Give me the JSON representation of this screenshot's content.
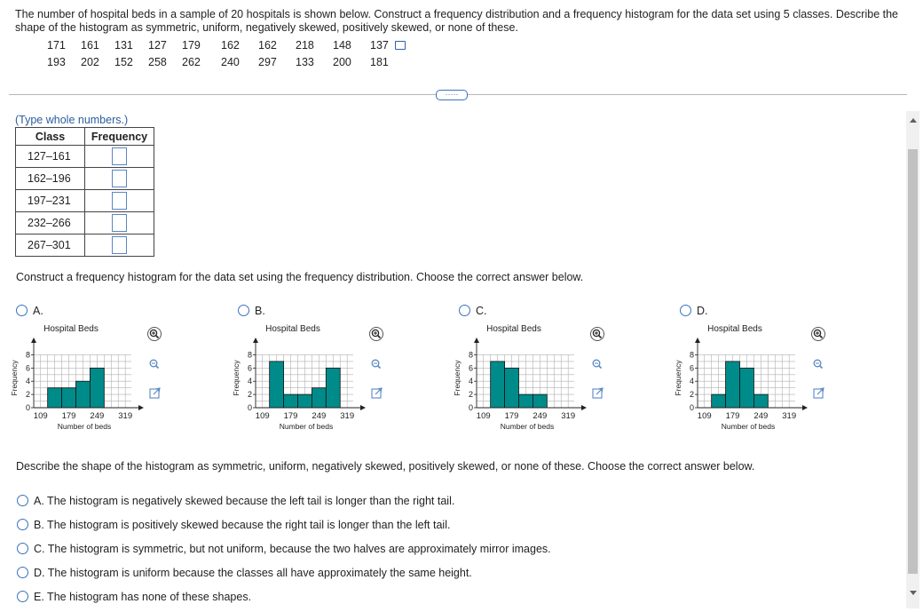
{
  "prompt": "The number of hospital beds in a sample of 20 hospitals is shown below. Construct a frequency distribution and a frequency histogram for the data set using 5 classes. Describe the shape of the histogram as symmetric, uniform, negatively skewed, positively skewed, or none of these.",
  "data_rows": [
    [
      "171",
      "161",
      "131",
      "127",
      "179",
      "162",
      "162",
      "218",
      "148",
      "137"
    ],
    [
      "193",
      "202",
      "152",
      "258",
      "262",
      "240",
      "297",
      "133",
      "200",
      "181"
    ]
  ],
  "more_label": "·····",
  "table_note": "(Type whole numbers.)",
  "table": {
    "headers": [
      "Class",
      "Frequency"
    ],
    "classes": [
      "127–161",
      "162–196",
      "197–231",
      "232–266",
      "267–301"
    ]
  },
  "question1": "Construct a frequency histogram for the data set using the frequency distribution. Choose the correct answer below.",
  "chart_data": [
    {
      "option": "A.",
      "type": "bar",
      "title": "Hospital Beds",
      "xlabel": "Number of beds",
      "ylabel": "Frequency",
      "yticks": [
        "0",
        "2",
        "4",
        "6",
        "8"
      ],
      "xticks": [
        "109",
        "179",
        "249",
        "319"
      ],
      "ylim": [
        0,
        9
      ],
      "xlim": [
        92,
        334
      ],
      "bins": [
        [
          127,
          161
        ],
        [
          162,
          196
        ],
        [
          197,
          231
        ],
        [
          232,
          266
        ],
        [
          267,
          301
        ]
      ],
      "values": [
        3,
        3,
        4,
        6,
        0
      ]
    },
    {
      "option": "B.",
      "type": "bar",
      "title": "Hospital Beds",
      "xlabel": "Number of beds",
      "ylabel": "Frequency",
      "yticks": [
        "0",
        "2",
        "4",
        "6",
        "8"
      ],
      "xticks": [
        "109",
        "179",
        "249",
        "319"
      ],
      "ylim": [
        0,
        9
      ],
      "xlim": [
        92,
        334
      ],
      "bins": [
        [
          127,
          161
        ],
        [
          162,
          196
        ],
        [
          197,
          231
        ],
        [
          232,
          266
        ],
        [
          267,
          301
        ]
      ],
      "values": [
        7,
        2,
        2,
        3,
        6
      ]
    },
    {
      "option": "C.",
      "type": "bar",
      "title": "Hospital Beds",
      "xlabel": "Number of beds",
      "ylabel": "Frequency",
      "yticks": [
        "0",
        "2",
        "4",
        "6",
        "8"
      ],
      "xticks": [
        "109",
        "179",
        "249",
        "319"
      ],
      "ylim": [
        0,
        9
      ],
      "xlim": [
        92,
        334
      ],
      "bins": [
        [
          127,
          161
        ],
        [
          162,
          196
        ],
        [
          197,
          231
        ],
        [
          232,
          266
        ],
        [
          267,
          301
        ]
      ],
      "values": [
        7,
        6,
        2,
        2,
        0
      ]
    },
    {
      "option": "D.",
      "type": "bar",
      "title": "Hospital Beds",
      "xlabel": "Number of beds",
      "ylabel": "Frequency",
      "yticks": [
        "0",
        "2",
        "4",
        "6",
        "8"
      ],
      "xticks": [
        "109",
        "179",
        "249",
        "319"
      ],
      "ylim": [
        0,
        9
      ],
      "xlim": [
        92,
        334
      ],
      "bins": [
        [
          127,
          161
        ],
        [
          162,
          196
        ],
        [
          197,
          231
        ],
        [
          232,
          266
        ],
        [
          267,
          301
        ]
      ],
      "values": [
        2,
        7,
        6,
        2,
        0
      ]
    }
  ],
  "question2": "Describe the shape of the histogram as symmetric, uniform, negatively skewed, positively skewed, or none of these. Choose the correct answer below.",
  "answers": [
    "A.  The histogram is negatively skewed because the left tail is longer than the right tail.",
    "B.  The histogram is positively skewed because the right tail is longer than the left tail.",
    "C.  The histogram is symmetric, but not uniform, because the two halves are approximately mirror images.",
    "D.  The histogram is uniform because the classes all have approximately the same height.",
    "E.  The histogram has none of these shapes."
  ],
  "colors": {
    "bar": "#008b8b",
    "accent": "#3a72bf",
    "grid": "#b0b0b0"
  },
  "icons": [
    "copy-icon",
    "zoom-in-icon",
    "zoom-out-icon",
    "expand-icon"
  ]
}
